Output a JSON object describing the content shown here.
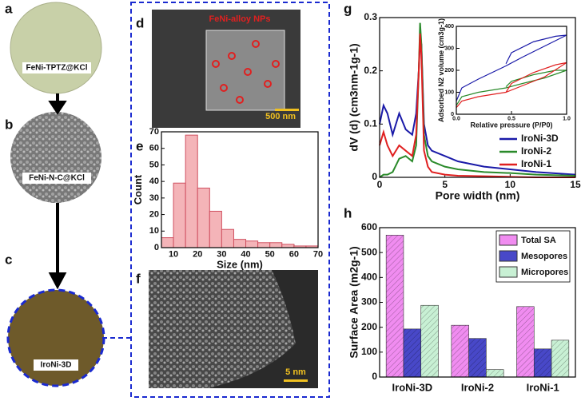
{
  "panels": {
    "letters": [
      "a",
      "b",
      "c",
      "d",
      "e",
      "f",
      "g",
      "h"
    ],
    "photo_labels": [
      "FeNi-TPTZ@KCl",
      "FeNi-N-C@KCl",
      "IroNi-3D"
    ],
    "sem_label": "FeNi-alloy NPs",
    "sem_scale": "500 nm",
    "tem_scale": "5 nm"
  },
  "chart_data": [
    {
      "type": "histogram",
      "x_label": "Size (nm)",
      "y_label": "Count",
      "color": "#f4b4b8",
      "bins": [
        5,
        10,
        15,
        20,
        25,
        30,
        35,
        40,
        45,
        50,
        55,
        60,
        65,
        70
      ],
      "values": [
        6,
        39,
        68,
        36,
        22,
        11,
        5,
        4,
        3,
        3,
        2,
        1,
        1
      ],
      "xlim": [
        5,
        70
      ],
      "xticks": [
        10,
        20,
        30,
        40,
        50,
        60,
        70
      ],
      "ylim": [
        0,
        70
      ],
      "yticks": [
        0,
        10,
        20,
        30,
        40,
        50,
        60,
        70
      ]
    },
    {
      "type": "line",
      "x_label": "Pore width (nm)",
      "y_label": "dV (d) (cm3nm-1g-1)",
      "legend": "lower right",
      "x": [
        0,
        0.3,
        0.6,
        1,
        1.5,
        2,
        2.5,
        2.8,
        3,
        3.1,
        3.2,
        3.4,
        3.7,
        4,
        5,
        6,
        8,
        10,
        12,
        15
      ],
      "series": [
        {
          "name": "IroNi-3D",
          "color": "#1a1aa8",
          "values": [
            0.1,
            0.135,
            0.12,
            0.08,
            0.12,
            0.09,
            0.08,
            0.12,
            0.2,
            0.26,
            0.25,
            0.1,
            0.06,
            0.05,
            0.04,
            0.03,
            0.02,
            0.015,
            0.01,
            0.005
          ]
        },
        {
          "name": "IroNi-2",
          "color": "#2a8a2a",
          "values": [
            0,
            0.005,
            0.005,
            0.01,
            0.035,
            0.04,
            0.03,
            0.06,
            0.2,
            0.29,
            0.25,
            0.08,
            0.04,
            0.03,
            0.02,
            0.015,
            0.01,
            0.008,
            0.005,
            0.003
          ]
        },
        {
          "name": "IroNi-1",
          "color": "#e02020",
          "values": [
            0.06,
            0.085,
            0.06,
            0.04,
            0.06,
            0.05,
            0.04,
            0.08,
            0.2,
            0.27,
            0.23,
            0.05,
            0.02,
            0.01,
            0.005,
            0.003,
            0.002,
            0.001,
            0,
            0
          ]
        }
      ],
      "xlim": [
        0,
        15
      ],
      "xticks": [
        0,
        5,
        10,
        15
      ],
      "ylim": [
        0,
        0.3
      ],
      "yticks": [
        0,
        0.1,
        0.2,
        0.3
      ]
    },
    {
      "type": "line",
      "x_label": "Relative pressure (P/P0)",
      "y_label": "Adsorbed N2 volume (cm3g-1)",
      "x": [
        0,
        0.05,
        0.2,
        0.45,
        0.6,
        0.8,
        1.0,
        0.9,
        0.7,
        0.5,
        0.45
      ],
      "series": [
        {
          "color": "#1a1aa8",
          "values": [
            60,
            120,
            160,
            220,
            260,
            310,
            360,
            355,
            330,
            280,
            230
          ]
        },
        {
          "color": "#2a8a2a",
          "values": [
            40,
            80,
            100,
            120,
            140,
            165,
            200,
            200,
            180,
            150,
            125
          ]
        },
        {
          "color": "#e02020",
          "values": [
            30,
            60,
            80,
            100,
            130,
            170,
            235,
            225,
            190,
            140,
            100
          ]
        }
      ],
      "xlim": [
        0,
        1
      ],
      "xticks": [
        {
          "value": 0,
          "label": "0.0"
        },
        {
          "value": 0.5,
          "label": "0.5"
        },
        {
          "value": 1,
          "label": "1.0"
        }
      ],
      "ylim": [
        0,
        400
      ],
      "yticks": [
        0,
        100,
        200,
        300,
        400
      ]
    },
    {
      "type": "bar",
      "y_label": "Surface Area (m2g-1)",
      "legend": "upper right",
      "categories": [
        "IroNi-3D",
        "IroNi-2",
        "IroNi-1"
      ],
      "series": [
        {
          "name": "Total SA",
          "color": "#f08cf0",
          "values": [
            570,
            208,
            283
          ]
        },
        {
          "name": "Mesopores",
          "color": "#4848c8",
          "values": [
            193,
            155,
            113
          ]
        },
        {
          "name": "Micropores",
          "color": "#c8f0d4",
          "values": [
            288,
            30,
            148
          ]
        }
      ],
      "ylim": [
        0,
        600
      ],
      "yticks": [
        0,
        100,
        200,
        300,
        400,
        500,
        600
      ]
    }
  ]
}
